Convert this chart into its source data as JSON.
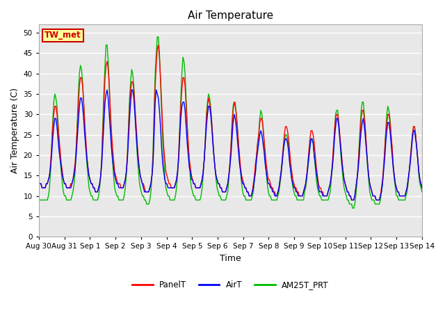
{
  "title": "Air Temperature",
  "xlabel": "Time",
  "ylabel": "Air Temperature (C)",
  "ylim": [
    0,
    52
  ],
  "yticks": [
    0,
    5,
    10,
    15,
    20,
    25,
    30,
    35,
    40,
    45,
    50
  ],
  "bg_color": "#e8e8e8",
  "fig_color": "#ffffff",
  "annotation_text": "TW_met",
  "annotation_bg": "#ffff99",
  "annotation_border": "#cc0000",
  "annotation_text_color": "#cc0000",
  "legend_labels": [
    "PanelT",
    "AirT",
    "AM25T_PRT"
  ],
  "legend_colors": [
    "#ff0000",
    "#0000ff",
    "#00bb00"
  ],
  "line_width": 1.0,
  "xtick_labels": [
    "Aug 30",
    "Aug 31",
    "Sep 1",
    "Sep 2",
    "Sep 3",
    "Sep 4",
    "Sep 5",
    "Sep 6",
    "Sep 7",
    "Sep 8",
    "Sep 9",
    "Sep 10",
    "Sep 11",
    "Sep 12",
    "Sep 13",
    "Sep 14"
  ],
  "panel_t": [
    13,
    13,
    13,
    12,
    12,
    12,
    12,
    13,
    13,
    14,
    15,
    18,
    22,
    27,
    30,
    32,
    32,
    30,
    27,
    24,
    21,
    18,
    16,
    14,
    13,
    13,
    12,
    12,
    12,
    12,
    13,
    13,
    14,
    16,
    18,
    22,
    27,
    32,
    37,
    39,
    39,
    37,
    33,
    28,
    24,
    20,
    17,
    15,
    14,
    13,
    13,
    12,
    12,
    11,
    11,
    11,
    12,
    13,
    15,
    19,
    26,
    33,
    39,
    42,
    43,
    41,
    37,
    31,
    26,
    22,
    19,
    16,
    15,
    14,
    13,
    13,
    13,
    12,
    12,
    12,
    13,
    14,
    16,
    20,
    26,
    32,
    36,
    38,
    38,
    36,
    32,
    28,
    24,
    20,
    17,
    15,
    14,
    13,
    13,
    12,
    11,
    11,
    11,
    11,
    12,
    13,
    15,
    19,
    28,
    37,
    42,
    46,
    47,
    44,
    39,
    33,
    27,
    22,
    19,
    16,
    15,
    14,
    13,
    13,
    12,
    12,
    12,
    12,
    13,
    14,
    16,
    20,
    26,
    32,
    36,
    39,
    39,
    37,
    32,
    27,
    23,
    19,
    17,
    15,
    14,
    13,
    13,
    12,
    12,
    12,
    12,
    12,
    13,
    14,
    16,
    19,
    24,
    29,
    32,
    34,
    33,
    31,
    28,
    24,
    20,
    17,
    15,
    14,
    13,
    13,
    12,
    12,
    11,
    11,
    11,
    11,
    12,
    13,
    15,
    18,
    22,
    27,
    31,
    33,
    32,
    30,
    27,
    23,
    20,
    17,
    15,
    14,
    13,
    12,
    12,
    11,
    11,
    10,
    10,
    10,
    11,
    13,
    15,
    18,
    20,
    23,
    25,
    28,
    29,
    29,
    27,
    24,
    21,
    18,
    16,
    14,
    14,
    13,
    12,
    12,
    11,
    11,
    10,
    10,
    11,
    12,
    14,
    16,
    19,
    22,
    25,
    27,
    27,
    26,
    24,
    21,
    18,
    16,
    14,
    13,
    12,
    12,
    11,
    11,
    10,
    10,
    10,
    10,
    11,
    12,
    13,
    15,
    18,
    21,
    24,
    26,
    26,
    25,
    23,
    20,
    17,
    15,
    13,
    12,
    12,
    11,
    11,
    10,
    10,
    10,
    10,
    11,
    12,
    13,
    15,
    18,
    22,
    26,
    29,
    30,
    30,
    28,
    25,
    22,
    19,
    16,
    14,
    13,
    12,
    11,
    11,
    10,
    10,
    9,
    9,
    9,
    10,
    12,
    14,
    17,
    21,
    25,
    29,
    31,
    31,
    29,
    26,
    22,
    18,
    15,
    13,
    12,
    11,
    10,
    10,
    10,
    9,
    9,
    9,
    9,
    10,
    12,
    14,
    17,
    21,
    25,
    28,
    30,
    30,
    28,
    25,
    22,
    18,
    15,
    13,
    12,
    11,
    11,
    10,
    10,
    10,
    10,
    10,
    10,
    11,
    12,
    14,
    16,
    19,
    22,
    25,
    27,
    27,
    25,
    22,
    19,
    16,
    14,
    13,
    12
  ],
  "air_t": [
    13,
    13,
    13,
    12,
    12,
    12,
    12,
    13,
    13,
    14,
    15,
    17,
    20,
    24,
    27,
    29,
    29,
    27,
    24,
    21,
    19,
    17,
    15,
    14,
    13,
    13,
    12,
    12,
    12,
    12,
    12,
    13,
    14,
    15,
    17,
    20,
    24,
    28,
    32,
    34,
    34,
    32,
    29,
    25,
    22,
    19,
    17,
    15,
    14,
    13,
    13,
    12,
    12,
    11,
    11,
    11,
    12,
    13,
    15,
    18,
    23,
    28,
    33,
    35,
    36,
    34,
    30,
    26,
    22,
    19,
    17,
    15,
    14,
    13,
    13,
    12,
    12,
    12,
    12,
    12,
    13,
    14,
    16,
    19,
    24,
    29,
    33,
    36,
    36,
    34,
    30,
    26,
    22,
    19,
    17,
    15,
    14,
    13,
    12,
    11,
    11,
    11,
    11,
    11,
    12,
    13,
    15,
    18,
    25,
    33,
    36,
    35,
    34,
    31,
    27,
    22,
    18,
    16,
    14,
    13,
    13,
    12,
    12,
    12,
    12,
    12,
    12,
    12,
    13,
    14,
    16,
    19,
    24,
    29,
    32,
    33,
    33,
    31,
    27,
    23,
    20,
    17,
    16,
    14,
    14,
    13,
    13,
    12,
    12,
    12,
    12,
    12,
    13,
    14,
    16,
    19,
    23,
    27,
    30,
    32,
    32,
    30,
    27,
    23,
    20,
    17,
    15,
    14,
    13,
    13,
    12,
    12,
    11,
    11,
    11,
    11,
    12,
    13,
    15,
    17,
    20,
    24,
    28,
    30,
    29,
    27,
    24,
    21,
    18,
    16,
    14,
    13,
    13,
    12,
    12,
    11,
    11,
    10,
    10,
    10,
    11,
    12,
    14,
    16,
    19,
    21,
    23,
    25,
    26,
    25,
    23,
    21,
    18,
    16,
    14,
    13,
    13,
    12,
    12,
    11,
    11,
    10,
    10,
    10,
    11,
    12,
    14,
    16,
    18,
    21,
    23,
    24,
    24,
    23,
    21,
    18,
    16,
    14,
    13,
    12,
    12,
    11,
    11,
    10,
    10,
    10,
    10,
    10,
    11,
    12,
    13,
    15,
    17,
    20,
    22,
    24,
    24,
    23,
    20,
    18,
    16,
    14,
    12,
    11,
    11,
    11,
    10,
    10,
    10,
    10,
    10,
    11,
    12,
    13,
    15,
    17,
    20,
    24,
    27,
    29,
    29,
    27,
    24,
    21,
    18,
    16,
    14,
    13,
    12,
    11,
    11,
    10,
    10,
    9,
    9,
    9,
    10,
    12,
    14,
    16,
    19,
    23,
    26,
    28,
    29,
    27,
    24,
    21,
    18,
    15,
    13,
    12,
    11,
    10,
    10,
    10,
    9,
    9,
    9,
    9,
    10,
    11,
    13,
    16,
    19,
    23,
    26,
    28,
    28,
    26,
    23,
    20,
    17,
    15,
    13,
    12,
    11,
    11,
    10,
    10,
    10,
    10,
    10,
    10,
    11,
    12,
    14,
    16,
    18,
    21,
    24,
    26,
    26,
    24,
    22,
    19,
    16,
    14,
    13,
    12
  ],
  "am25t": [
    9,
    9,
    9,
    9,
    9,
    9,
    9,
    9,
    9,
    10,
    12,
    16,
    22,
    28,
    33,
    35,
    34,
    32,
    28,
    23,
    19,
    16,
    13,
    11,
    10,
    10,
    9,
    9,
    9,
    9,
    9,
    10,
    11,
    13,
    16,
    21,
    28,
    35,
    40,
    42,
    41,
    38,
    33,
    27,
    22,
    18,
    15,
    12,
    11,
    10,
    10,
    9,
    9,
    9,
    9,
    9,
    10,
    12,
    15,
    20,
    28,
    36,
    42,
    47,
    47,
    43,
    37,
    30,
    24,
    19,
    15,
    12,
    11,
    10,
    10,
    9,
    9,
    9,
    9,
    9,
    10,
    12,
    15,
    20,
    27,
    34,
    38,
    41,
    40,
    37,
    32,
    26,
    21,
    17,
    14,
    12,
    11,
    10,
    10,
    9,
    9,
    8,
    8,
    8,
    9,
    11,
    15,
    21,
    31,
    40,
    45,
    49,
    49,
    45,
    38,
    31,
    24,
    19,
    15,
    12,
    11,
    10,
    10,
    9,
    9,
    9,
    9,
    9,
    10,
    12,
    15,
    20,
    27,
    34,
    40,
    44,
    43,
    40,
    34,
    28,
    22,
    18,
    14,
    12,
    11,
    10,
    10,
    9,
    9,
    9,
    9,
    9,
    10,
    12,
    15,
    19,
    24,
    30,
    33,
    35,
    34,
    32,
    28,
    24,
    20,
    17,
    14,
    12,
    11,
    10,
    10,
    9,
    9,
    9,
    9,
    9,
    10,
    11,
    14,
    18,
    22,
    28,
    32,
    33,
    33,
    30,
    27,
    23,
    19,
    16,
    13,
    11,
    10,
    10,
    9,
    9,
    9,
    9,
    9,
    9,
    10,
    11,
    14,
    16,
    20,
    23,
    25,
    29,
    31,
    30,
    27,
    23,
    19,
    16,
    13,
    11,
    10,
    10,
    9,
    9,
    9,
    9,
    9,
    9,
    10,
    11,
    13,
    15,
    18,
    21,
    23,
    25,
    25,
    24,
    22,
    19,
    16,
    14,
    12,
    11,
    10,
    10,
    9,
    9,
    9,
    9,
    9,
    9,
    9,
    11,
    12,
    14,
    17,
    19,
    22,
    24,
    24,
    23,
    20,
    17,
    14,
    12,
    11,
    10,
    10,
    9,
    9,
    9,
    9,
    9,
    9,
    9,
    10,
    11,
    14,
    17,
    21,
    26,
    30,
    31,
    31,
    28,
    24,
    20,
    17,
    14,
    12,
    11,
    10,
    9,
    9,
    8,
    8,
    8,
    7,
    7,
    8,
    10,
    13,
    17,
    22,
    27,
    31,
    33,
    33,
    30,
    26,
    21,
    17,
    14,
    11,
    10,
    9,
    9,
    9,
    8,
    8,
    8,
    8,
    8,
    9,
    11,
    13,
    17,
    21,
    26,
    30,
    32,
    31,
    29,
    25,
    21,
    17,
    14,
    12,
    10,
    10,
    9,
    9,
    9,
    9,
    9,
    9,
    9,
    10,
    11,
    13,
    16,
    19,
    22,
    25,
    27,
    27,
    25,
    22,
    19,
    15,
    13,
    12,
    11
  ]
}
